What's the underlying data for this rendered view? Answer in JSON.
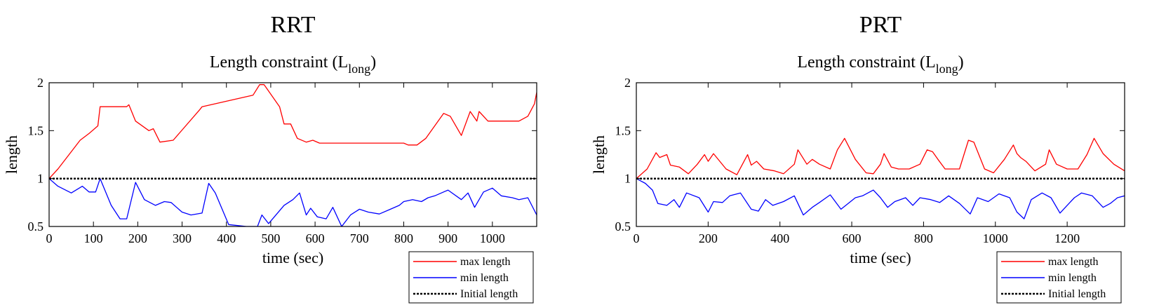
{
  "colors": {
    "max": "#ff0000",
    "min": "#0000ff",
    "initial": "#000000"
  },
  "legend": [
    "max length",
    "min length",
    "Initial length"
  ],
  "chart_data": [
    {
      "type": "line",
      "title": "RRT",
      "subtitle_main": "Length constraint (L",
      "subtitle_sub": "long",
      "subtitle_end": ")",
      "xlabel": "time (sec)",
      "ylabel": "length",
      "xlim": [
        0,
        1100
      ],
      "ylim": [
        0.5,
        2
      ],
      "xticks": [
        0,
        100,
        200,
        300,
        400,
        500,
        600,
        700,
        800,
        900,
        1000
      ],
      "yticks": [
        0.5,
        1,
        1.5,
        2
      ],
      "ytick_labels": [
        "0.5",
        "1",
        "1.5",
        "2"
      ],
      "legend_position": "below-right",
      "series": [
        {
          "name": "max length",
          "x": [
            0,
            20,
            50,
            70,
            90,
            110,
            115,
            175,
            180,
            195,
            225,
            235,
            250,
            280,
            340,
            345,
            460,
            475,
            485,
            520,
            530,
            545,
            560,
            580,
            595,
            610,
            800,
            810,
            830,
            850,
            890,
            905,
            930,
            950,
            965,
            970,
            990,
            1000,
            1050,
            1060,
            1080,
            1095,
            1100
          ],
          "y": [
            1.0,
            1.1,
            1.28,
            1.4,
            1.47,
            1.55,
            1.75,
            1.75,
            1.77,
            1.6,
            1.5,
            1.52,
            1.38,
            1.4,
            1.72,
            1.75,
            1.87,
            1.98,
            1.98,
            1.75,
            1.57,
            1.57,
            1.42,
            1.38,
            1.4,
            1.37,
            1.37,
            1.35,
            1.35,
            1.42,
            1.68,
            1.65,
            1.45,
            1.7,
            1.6,
            1.7,
            1.6,
            1.6,
            1.6,
            1.6,
            1.65,
            1.78,
            1.9
          ]
        },
        {
          "name": "min length",
          "x": [
            0,
            20,
            50,
            75,
            90,
            105,
            115,
            140,
            160,
            175,
            195,
            215,
            240,
            260,
            275,
            300,
            320,
            345,
            360,
            375,
            405,
            445,
            470,
            480,
            495,
            530,
            550,
            565,
            580,
            590,
            605,
            625,
            640,
            660,
            680,
            700,
            720,
            745,
            770,
            790,
            800,
            820,
            840,
            855,
            870,
            900,
            930,
            945,
            960,
            980,
            1000,
            1020,
            1045,
            1060,
            1080,
            1100
          ],
          "y": [
            1.0,
            0.92,
            0.85,
            0.92,
            0.86,
            0.86,
            1.0,
            0.72,
            0.58,
            0.58,
            0.96,
            0.78,
            0.72,
            0.76,
            0.75,
            0.65,
            0.62,
            0.64,
            0.95,
            0.85,
            0.52,
            0.5,
            0.5,
            0.62,
            0.53,
            0.72,
            0.78,
            0.85,
            0.62,
            0.69,
            0.6,
            0.58,
            0.7,
            0.5,
            0.62,
            0.68,
            0.65,
            0.63,
            0.68,
            0.72,
            0.76,
            0.78,
            0.76,
            0.8,
            0.82,
            0.88,
            0.78,
            0.85,
            0.7,
            0.86,
            0.9,
            0.82,
            0.8,
            0.78,
            0.8,
            0.62
          ]
        },
        {
          "name": "Initial length",
          "x": [
            0,
            1100
          ],
          "y": [
            1.0,
            1.0
          ]
        }
      ]
    },
    {
      "type": "line",
      "title": "PRT",
      "subtitle_main": "Length constraint (L",
      "subtitle_sub": "long",
      "subtitle_end": ")",
      "xlabel": "time (sec)",
      "ylabel": "length",
      "xlim": [
        0,
        1360
      ],
      "ylim": [
        0.5,
        2
      ],
      "xticks": [
        0,
        200,
        400,
        600,
        800,
        1000,
        1200
      ],
      "yticks": [
        0.5,
        1,
        1.5,
        2
      ],
      "ytick_labels": [
        "0.5",
        "1",
        "1.5",
        "2"
      ],
      "legend_position": "below-right",
      "series": [
        {
          "name": "max length",
          "x": [
            0,
            30,
            55,
            65,
            85,
            95,
            120,
            145,
            170,
            190,
            200,
            215,
            250,
            280,
            300,
            310,
            320,
            335,
            355,
            385,
            410,
            440,
            450,
            475,
            490,
            510,
            540,
            560,
            580,
            610,
            640,
            660,
            680,
            690,
            710,
            730,
            760,
            790,
            810,
            825,
            840,
            860,
            900,
            925,
            940,
            970,
            995,
            1025,
            1050,
            1060,
            1070,
            1085,
            1110,
            1140,
            1150,
            1170,
            1200,
            1230,
            1255,
            1275,
            1300,
            1330,
            1360
          ],
          "y": [
            1.0,
            1.1,
            1.27,
            1.22,
            1.25,
            1.14,
            1.12,
            1.05,
            1.15,
            1.25,
            1.18,
            1.26,
            1.1,
            1.04,
            1.18,
            1.25,
            1.14,
            1.18,
            1.1,
            1.08,
            1.05,
            1.15,
            1.3,
            1.15,
            1.2,
            1.15,
            1.1,
            1.3,
            1.42,
            1.2,
            1.06,
            1.05,
            1.15,
            1.26,
            1.12,
            1.1,
            1.1,
            1.15,
            1.3,
            1.28,
            1.2,
            1.1,
            1.1,
            1.4,
            1.38,
            1.1,
            1.06,
            1.2,
            1.35,
            1.26,
            1.22,
            1.18,
            1.08,
            1.15,
            1.3,
            1.15,
            1.1,
            1.1,
            1.25,
            1.42,
            1.26,
            1.15,
            1.08
          ]
        },
        {
          "name": "min length",
          "x": [
            0,
            25,
            45,
            60,
            85,
            105,
            120,
            140,
            175,
            200,
            215,
            240,
            260,
            290,
            320,
            340,
            360,
            380,
            410,
            440,
            465,
            490,
            510,
            540,
            570,
            590,
            610,
            630,
            660,
            680,
            700,
            720,
            750,
            770,
            790,
            820,
            845,
            870,
            900,
            930,
            950,
            980,
            1010,
            1040,
            1060,
            1080,
            1100,
            1130,
            1155,
            1180,
            1200,
            1220,
            1240,
            1270,
            1300,
            1320,
            1340,
            1360
          ],
          "y": [
            1.0,
            0.95,
            0.88,
            0.74,
            0.72,
            0.78,
            0.7,
            0.85,
            0.8,
            0.65,
            0.76,
            0.75,
            0.82,
            0.85,
            0.68,
            0.66,
            0.78,
            0.72,
            0.76,
            0.82,
            0.62,
            0.7,
            0.75,
            0.83,
            0.68,
            0.74,
            0.8,
            0.82,
            0.88,
            0.8,
            0.7,
            0.76,
            0.8,
            0.72,
            0.8,
            0.78,
            0.75,
            0.82,
            0.74,
            0.63,
            0.8,
            0.76,
            0.84,
            0.8,
            0.65,
            0.58,
            0.78,
            0.85,
            0.8,
            0.64,
            0.72,
            0.8,
            0.85,
            0.82,
            0.7,
            0.74,
            0.8,
            0.82
          ]
        },
        {
          "name": "Initial length",
          "x": [
            0,
            1360
          ],
          "y": [
            1.0,
            1.0
          ]
        }
      ]
    }
  ]
}
